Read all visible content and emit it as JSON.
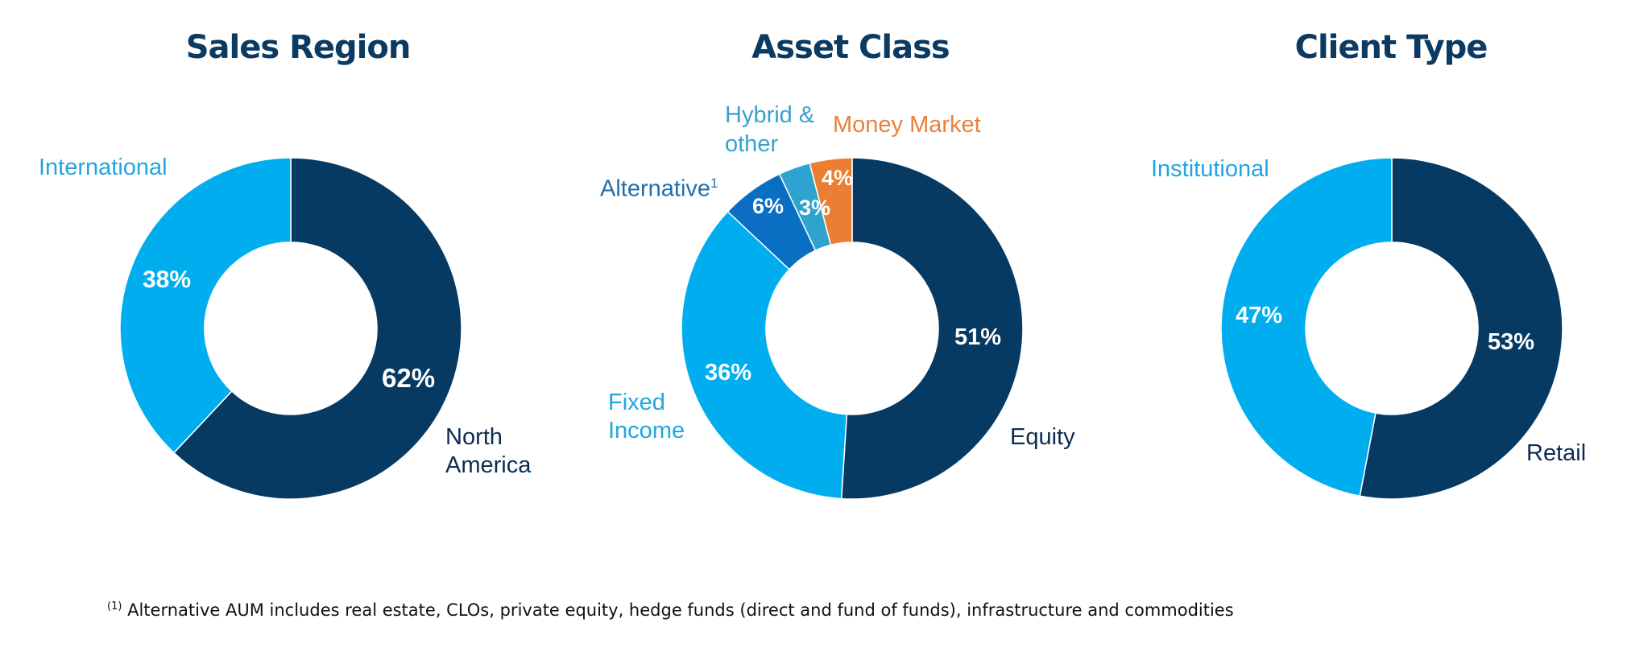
{
  "colors": {
    "dark_navy": "#063a63",
    "light_blue": "#00aeef",
    "medium_blue": "#0a6fc2",
    "teal": "#2ea3cf",
    "orange": "#ea7f33"
  },
  "chart_data": [
    {
      "type": "pie",
      "title": "Sales Region",
      "categories": [
        "North America",
        "International"
      ],
      "values": [
        62,
        38
      ],
      "data_labels": [
        "62%",
        "38%"
      ]
    },
    {
      "type": "pie",
      "title": "Asset Class",
      "categories": [
        "Equity",
        "Fixed Income",
        "Alternative",
        "Hybrid & other",
        "Money Market"
      ],
      "values": [
        51,
        36,
        6,
        3,
        4
      ],
      "data_labels": [
        "51%",
        "36%",
        "6%",
        "3%",
        "4%"
      ],
      "alternative_marker": "1"
    },
    {
      "type": "pie",
      "title": "Client Type",
      "categories": [
        "Retail",
        "Institutional"
      ],
      "values": [
        53,
        47
      ],
      "data_labels": [
        "53%",
        "47%"
      ]
    }
  ],
  "labels": {
    "international": "International",
    "north_america_1": "North",
    "north_america_2": "America",
    "hybrid_1": "Hybrid &",
    "hybrid_2": "other",
    "money_market": "Money Market",
    "alternative": "Alternative",
    "fixed_income_1": "Fixed",
    "fixed_income_2": "Income",
    "equity": "Equity",
    "institutional": "Institutional",
    "retail": "Retail"
  },
  "footnote": {
    "marker": "(1)",
    "text": "Alternative AUM includes real estate, CLOs, private equity, hedge funds (direct and fund of funds), infrastructure and commodities"
  }
}
